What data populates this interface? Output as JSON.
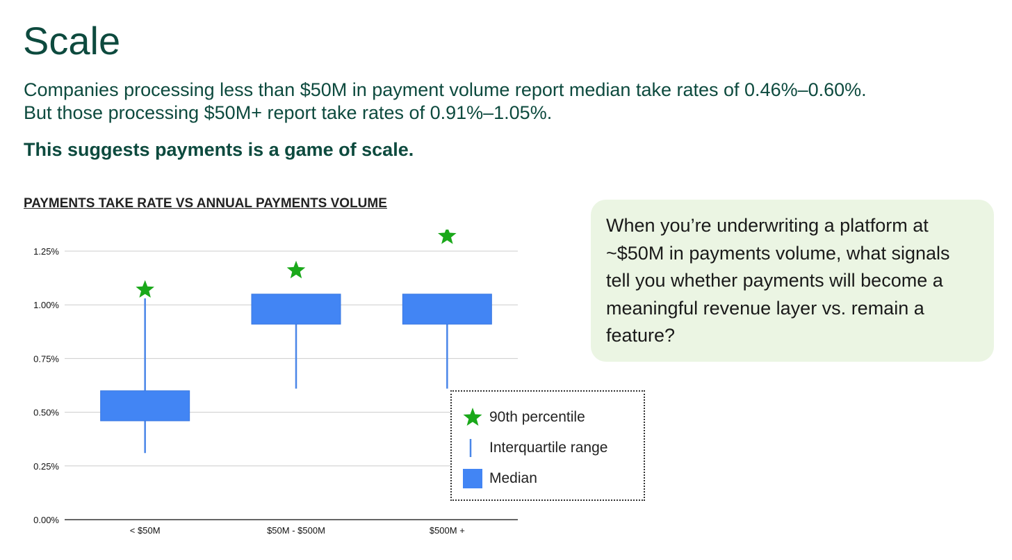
{
  "title": "Scale",
  "subtitle": {
    "line1": "Companies processing less than $50M in payment volume report median take rates of 0.46%–0.60%.",
    "line2": "But those processing $50M+ report take rates of 0.91%–1.05%."
  },
  "takeaway": "This suggests payments is a game of scale.",
  "callout": "When you’re underwriting a platform at ~$50M in payments volume, what signals tell you whether payments will become a meaningful revenue layer vs. remain a feature?",
  "colors": {
    "text": "#0d4a3e",
    "box": "#4285f4",
    "whisker": "#4a86e8",
    "star": "#1aa81a",
    "grid": "#cccccc",
    "callout_bg": "#ebf5e3"
  },
  "legend": {
    "items": [
      {
        "icon": "star-icon",
        "label": "90th percentile"
      },
      {
        "icon": "whisker-line-icon",
        "label": "Interquartile range"
      },
      {
        "icon": "median-box-icon",
        "label": "Median"
      }
    ]
  },
  "chart_data": {
    "type": "box",
    "title": "PAYMENTS TAKE RATE VS ANNUAL PAYMENTS VOLUME",
    "xlabel": "",
    "ylabel": "",
    "ylim": [
      0,
      1.25
    ],
    "yticks": [
      0,
      0.25,
      0.5,
      0.75,
      1.0,
      1.25
    ],
    "ytick_labels": [
      "0.00%",
      "0.25%",
      "0.50%",
      "0.75%",
      "1.00%",
      "1.25%"
    ],
    "grid": true,
    "legend_position": "bottom-right",
    "categories": [
      "< $50M",
      "$50M - $500M",
      "$500M +"
    ],
    "series": [
      {
        "name": "Median",
        "box_low": [
          0.46,
          0.91,
          0.91
        ],
        "box_high": [
          0.6,
          1.05,
          1.05
        ]
      },
      {
        "name": "Interquartile range",
        "low": [
          0.31,
          0.61,
          0.61
        ],
        "high": [
          1.03,
          0.91,
          0.91
        ]
      },
      {
        "name": "90th percentile",
        "values": [
          1.07,
          1.16,
          1.32
        ]
      }
    ]
  }
}
